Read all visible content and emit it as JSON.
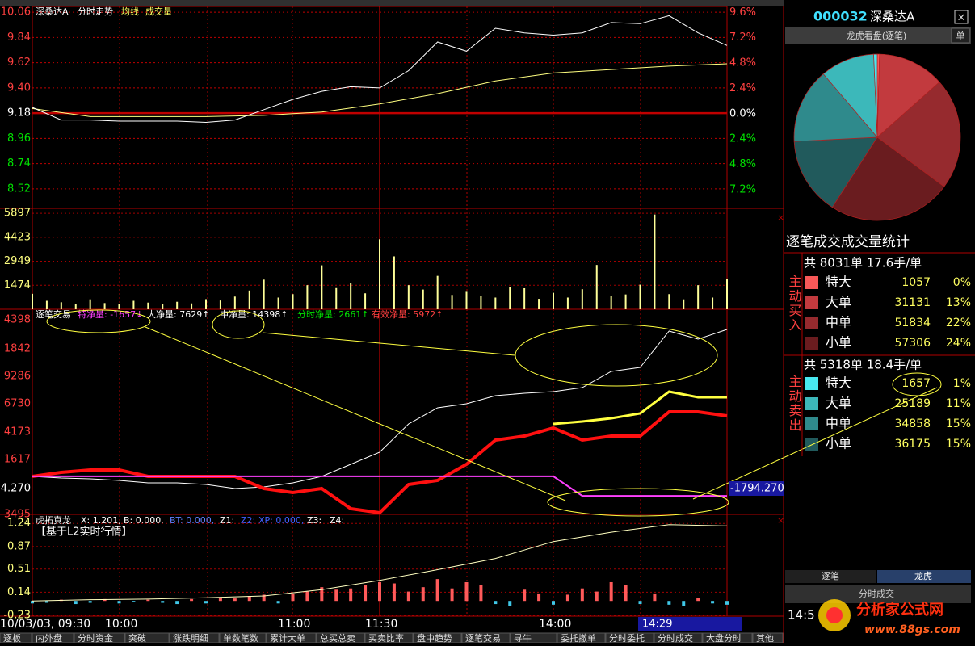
{
  "price_pane": {
    "header": [
      {
        "text": "深桑达A",
        "color": "#ffffff"
      },
      {
        "text": "分时走势",
        "color": "#ffffff"
      },
      {
        "text": "均线",
        "color": "#ffff60"
      },
      {
        "text": "成交量",
        "color": "#ffff60"
      }
    ],
    "ylim": [
      8.35,
      10.11
    ],
    "yticks": [
      10.06,
      9.84,
      9.62,
      {
        "value": 9.4,
        "label": "9.40"
      },
      9.18,
      8.96,
      8.74,
      8.52
    ],
    "y2lim": [
      -8.96,
      10.16
    ],
    "y2ticks": [
      {
        "value": 9.6,
        "label": "9.6%"
      },
      {
        "value": 7.2,
        "label": "7.2%"
      },
      {
        "value": 4.8,
        "label": "4.8%"
      },
      {
        "value": 2.4,
        "label": "2.4%"
      },
      {
        "value": 0,
        "label": "0.0%"
      },
      {
        "value": -2.4,
        "label": "2.4%"
      },
      {
        "value": -4.8,
        "label": "4.8%"
      },
      {
        "value": -7.2,
        "label": "7.2%"
      }
    ],
    "up_color": "#ff4040",
    "down_color": "#00e000",
    "flat_color": "#ffffff",
    "price": [
      9.23,
      9.12,
      9.12,
      9.11,
      9.11,
      9.11,
      9.1,
      9.12,
      9.21,
      9.3,
      9.37,
      9.41,
      9.4,
      9.55,
      9.8,
      9.72,
      9.92,
      9.88,
      9.86,
      9.88,
      9.97,
      9.96,
      10.03,
      9.88,
      9.77
    ],
    "price_color": "#ffffff",
    "avg": [
      9.22,
      9.15,
      9.15,
      9.15,
      9.16,
      9.19,
      9.26,
      9.35,
      9.46,
      9.53,
      9.56,
      9.59,
      9.61
    ],
    "avg_color": "#ffff80"
  },
  "volume_pane": {
    "ylim": [
      0,
      6200
    ],
    "yticks": [
      5897,
      4423,
      2949,
      1474
    ],
    "color": "#ffff99",
    "values": [
      950,
      520,
      430,
      320,
      610,
      380,
      300,
      520,
      410,
      330,
      460,
      360,
      620,
      540,
      780,
      1150,
      1820,
      720,
      930,
      1480,
      2700,
      1300,
      1620,
      980,
      4300,
      3250,
      1480,
      1210,
      2050,
      880,
      1120,
      830,
      720,
      1380,
      1290,
      640,
      1010,
      720,
      1230,
      2720,
      820,
      910,
      1510,
      5820,
      930,
      610,
      1480,
      720,
      1880
    ]
  },
  "flow_pane": {
    "header": [
      {
        "text": "逐笔交易",
        "color": "#ffffff"
      },
      {
        "text": "特净量: -1657↓",
        "color": "#ff40ff"
      },
      {
        "text": "大净量: 7629↑",
        "color": "#ffffff"
      },
      {
        "text": "中净量: 14398↑",
        "color": "#ffffff"
      },
      {
        "text": "分时净量: 2661↑",
        "color": "#00e000"
      },
      {
        "text": "有效净量: 5972↑",
        "color": "#ff4040"
      }
    ],
    "axis_labels": [
      "4398",
      "1842",
      "9286",
      "6730",
      "4173",
      "1617",
      "3495"
    ],
    "cursor_value": "-1794.270",
    "ylim": [
      -3496,
      15363
    ],
    "lines": [
      {
        "color": "#ffffff",
        "width": 1,
        "values": [
          -7,
          -155,
          -229,
          -378,
          -600,
          -600,
          -749,
          -1120,
          -972,
          -600,
          -7,
          1107,
          2221,
          4820,
          6305,
          6676,
          7418,
          7641,
          7790,
          8161,
          9646,
          10017,
          13358,
          12616,
          13507
        ]
      },
      {
        "color": "#ff1010",
        "width": 4,
        "values": [
          -7,
          364,
          587,
          587,
          -7,
          -7,
          -7,
          -7,
          -1120,
          -1491,
          -1120,
          -2976,
          -3348,
          -749,
          -378,
          1107,
          3335,
          3706,
          4448,
          3335,
          3706,
          3706,
          5934,
          5934,
          5562
        ]
      },
      {
        "color": "#ffff40",
        "width": 3,
        "values": [
          null,
          null,
          null,
          null,
          null,
          null,
          null,
          null,
          null,
          null,
          null,
          null,
          null,
          null,
          null,
          null,
          null,
          null,
          4820,
          5043,
          5340,
          5785,
          7790,
          7270,
          7270
        ]
      },
      {
        "color": "#ff40ff",
        "width": 2,
        "values": [
          0,
          0,
          0,
          0,
          0,
          0,
          0,
          0,
          0,
          0,
          0,
          0,
          0,
          0,
          0,
          0,
          0,
          0,
          0,
          -1794.27,
          -1794.27,
          -1794.27,
          -1794.27,
          -1794.27,
          -1794.27
        ]
      }
    ]
  },
  "signal_pane": {
    "header": [
      {
        "text": "虎拓真龙",
        "color": "#ffffff"
      },
      {
        "text": "X: 1.201,",
        "color": "#ffffff"
      },
      {
        "text": "B: 0.000,",
        "color": "#ffffff"
      },
      {
        "text": "BT: 0.000,",
        "color": "#6080ff"
      },
      {
        "text": "Z1:",
        "color": "#ffffff"
      },
      {
        "text": "Z2:",
        "color": "#4060ff"
      },
      {
        "text": "XP: 0.000,",
        "color": "#4060ff"
      },
      {
        "text": "Z3:",
        "color": "#ffffff"
      },
      {
        "text": "Z4:",
        "color": "#ffffff"
      }
    ],
    "note": "【基于L2实时行情】",
    "ylim": [
      -0.243,
      1.385
    ],
    "yticks": [
      1.24,
      0.87,
      0.51,
      0.14,
      -0.23
    ],
    "line": [
      0.0,
      0.02,
      0.03,
      0.05,
      0.08,
      0.18,
      0.33,
      0.5,
      0.68,
      0.95,
      1.1,
      1.22,
      1.2
    ],
    "line_color": "#ffffc0",
    "bars": [
      -0.04,
      -0.03,
      0.02,
      -0.05,
      -0.03,
      0.03,
      -0.04,
      -0.02,
      0.02,
      -0.03,
      -0.05,
      0.03,
      -0.04,
      0.05,
      0.04,
      0.08,
      0.1,
      -0.04,
      0.12,
      0.15,
      0.22,
      0.18,
      0.2,
      0.25,
      0.3,
      0.28,
      0.15,
      0.22,
      0.35,
      0.2,
      0.3,
      0.25,
      -0.05,
      -0.08,
      0.18,
      0.12,
      -0.06,
      0.1,
      0.2,
      0.15,
      0.3,
      0.25,
      -0.05,
      0.12,
      -0.06,
      -0.08,
      0.05,
      -0.04,
      -0.06
    ],
    "up_color": "#ff5a5a",
    "down_color": "#40c8e8"
  },
  "time_axis": {
    "labels": [
      "10/03/03, 09:30",
      "10:00",
      "11:00",
      "11:30",
      "14:00"
    ],
    "cursor": "14:29"
  },
  "tabs": [
    "逐板",
    "内外盘",
    "分时资金",
    "突破",
    "涨跌明细",
    "单数笔数",
    "累计大单",
    "总买总卖",
    "买卖比率",
    "盘中趋势",
    "逐笔交易",
    "寻牛",
    "委托撤单",
    "分时委托",
    "分时成交",
    "大盘分时",
    "其他"
  ],
  "side": {
    "code": "000032",
    "name": "深桑达A",
    "close": "×",
    "panel_title": "龙虎看盘(逐笔)",
    "panel_button": "单",
    "stats_title": "逐笔成交成交量统计",
    "buy": {
      "summary": "共 8031单 17.6手/单",
      "label": "主动买入",
      "rows": [
        {
          "name": "特大",
          "volume": 1057,
          "pct": "0%",
          "color": "#f85858"
        },
        {
          "name": "大单",
          "volume": 31131,
          "pct": "13%",
          "color": "#c23a3e"
        },
        {
          "name": "中单",
          "volume": 51834,
          "pct": "22%",
          "color": "#962a2e"
        },
        {
          "name": "小单",
          "volume": 57306,
          "pct": "24%",
          "color": "#6a1c1f"
        }
      ]
    },
    "sell": {
      "summary": "共 5318单 18.4手/单",
      "label": "主动卖出",
      "rows": [
        {
          "name": "特大",
          "volume": 1657,
          "pct": "1%",
          "color": "#48e8f0"
        },
        {
          "name": "大单",
          "volume": 25189,
          "pct": "11%",
          "color": "#3cb8ba"
        },
        {
          "name": "中单",
          "volume": 34858,
          "pct": "15%",
          "color": "#2f8a8c"
        },
        {
          "name": "小单",
          "volume": 36175,
          "pct": "15%",
          "color": "#215a5c"
        }
      ]
    },
    "tab_left": "逐笔",
    "tab_right": "龙虎",
    "bottom_title": "分时成交",
    "bottom_time": "14:5",
    "watermark": "分析家公式网",
    "watermark_url": "www.88gs.com"
  }
}
